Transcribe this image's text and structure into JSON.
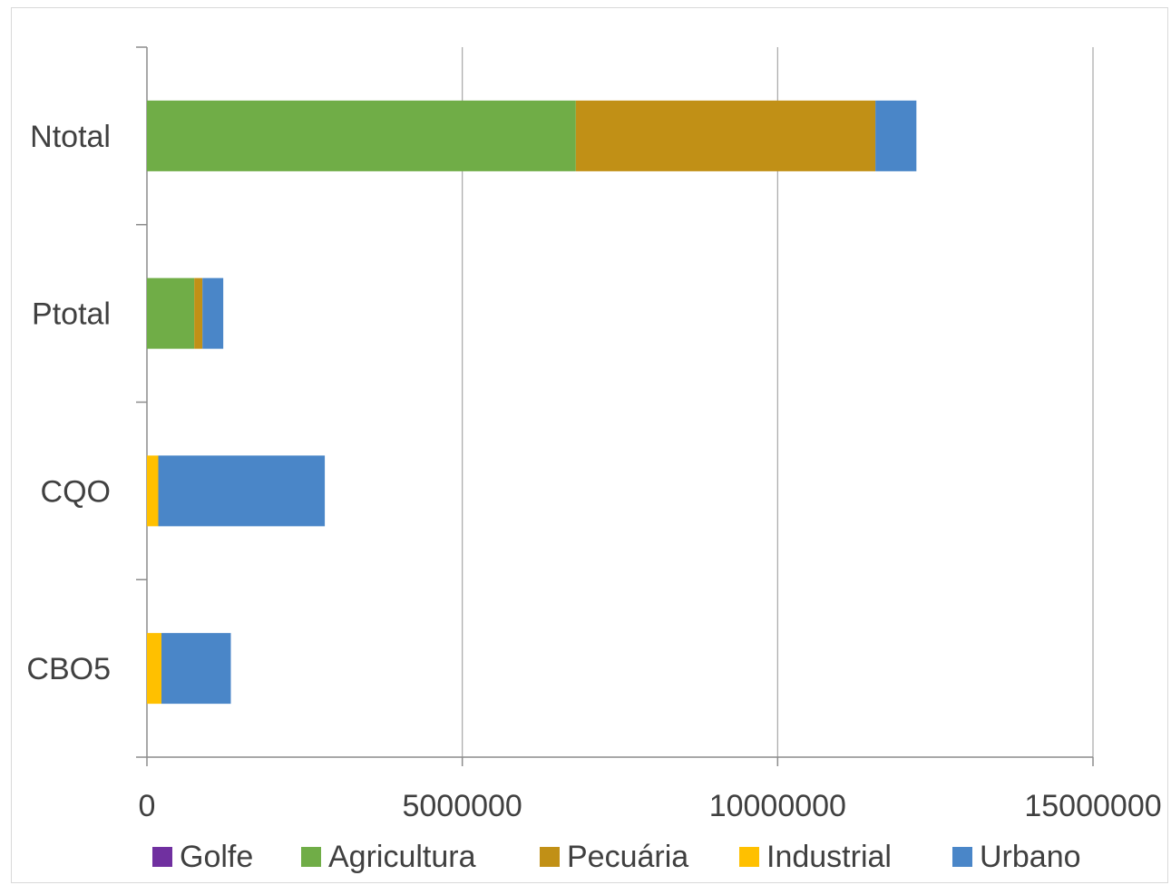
{
  "chart_data": {
    "type": "bar",
    "orientation": "horizontal",
    "stacked": true,
    "title": "",
    "xlabel": "",
    "ylabel": "",
    "categories": [
      "Ntotal",
      "Ptotal",
      "CQO",
      "CBO5"
    ],
    "xlim": [
      0,
      15000000
    ],
    "xticks": [
      "0",
      "5000000",
      "10000000",
      "15000000"
    ],
    "xtick_values": [
      0,
      5000000,
      10000000,
      15000000
    ],
    "grid": "vertical",
    "legend_position": "bottom",
    "series": [
      {
        "name": "Golfe",
        "color": "#7030a0",
        "values": [
          0,
          0,
          0,
          0
        ]
      },
      {
        "name": "Agricultura",
        "color": "#70ad47",
        "values": [
          6800000,
          750000,
          0,
          0
        ]
      },
      {
        "name": "Pecuária",
        "color": "#c19016",
        "values": [
          4750000,
          130000,
          0,
          0
        ]
      },
      {
        "name": "Industrial",
        "color": "#ffc000",
        "values": [
          0,
          0,
          180000,
          230000
        ]
      },
      {
        "name": "Urbano",
        "color": "#4a86c8",
        "values": [
          650000,
          330000,
          2640000,
          1100000
        ]
      }
    ]
  }
}
